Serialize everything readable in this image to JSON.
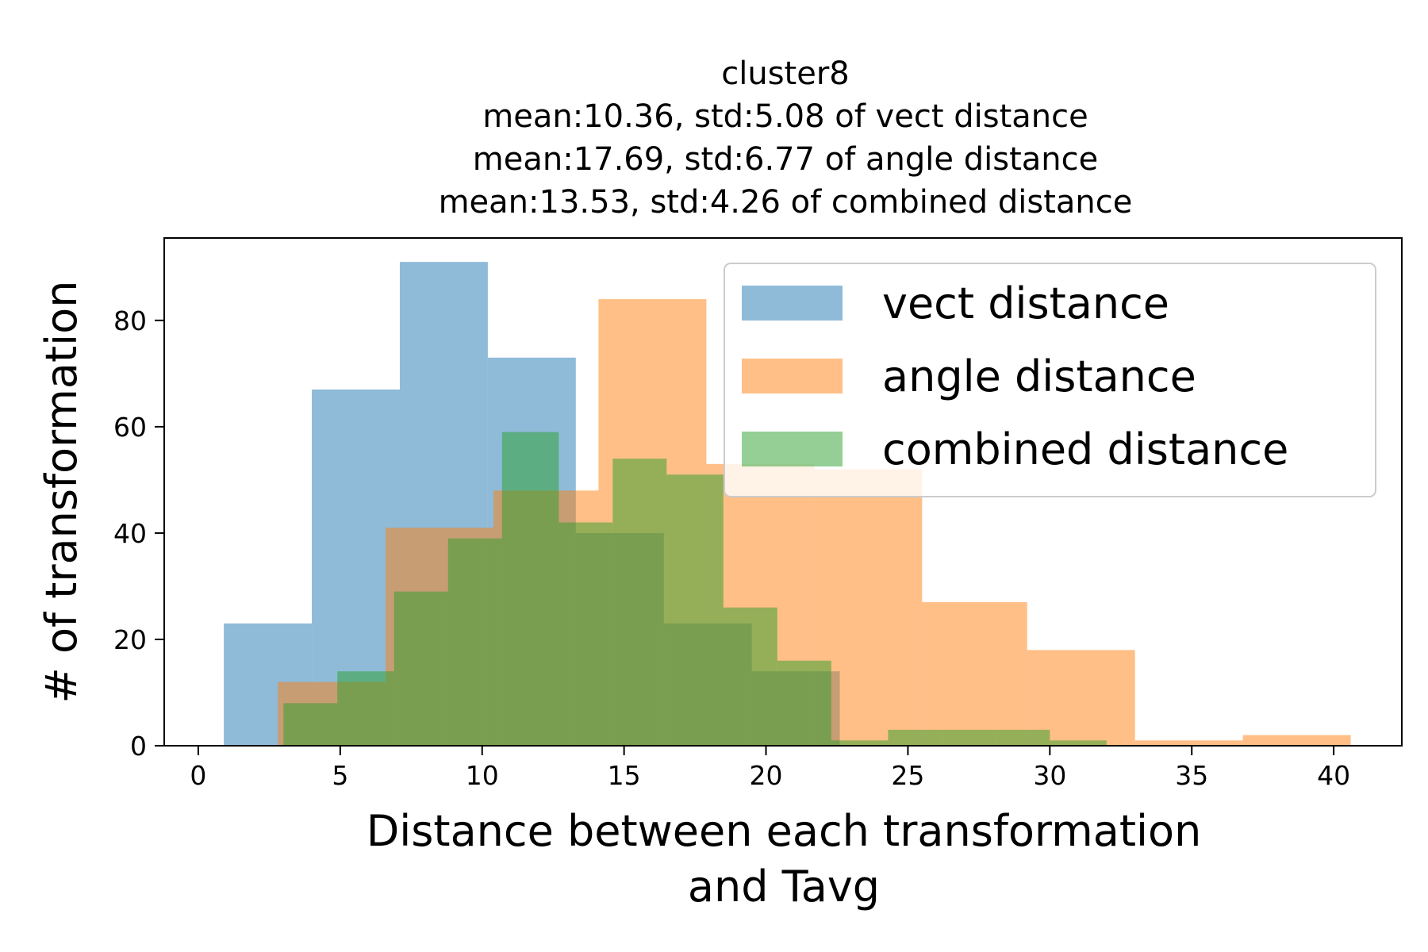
{
  "chart_data": {
    "type": "bar",
    "title_lines": [
      "cluster8",
      "mean:10.36, std:5.08 of vect distance",
      "mean:17.69, std:6.77 of angle distance",
      "mean:13.53, std:4.26 of combined distance"
    ],
    "xlabel_lines": [
      "Distance between each transformation",
      "and Tavg"
    ],
    "ylabel": "# of transformation",
    "xlim": [
      -1.2,
      42.4
    ],
    "ylim": [
      0,
      95.5
    ],
    "xticks": [
      0,
      5,
      10,
      15,
      20,
      25,
      30,
      35,
      40
    ],
    "yticks": [
      0,
      20,
      40,
      60,
      80
    ],
    "grid": false,
    "legend_position": "top-right",
    "series": [
      {
        "name": "vect distance",
        "color": "#1f77b4",
        "alpha": 0.5,
        "bin_edges": [
          0.9,
          4.0,
          7.1,
          10.2,
          13.3,
          16.4,
          19.5,
          22.6
        ],
        "values": [
          23,
          67,
          91,
          73,
          40,
          23,
          14
        ]
      },
      {
        "name": "angle distance",
        "color": "#ff7f0e",
        "alpha": 0.5,
        "bin_edges": [
          2.8,
          6.6,
          10.4,
          14.1,
          17.9,
          21.7,
          25.5,
          29.2,
          33.0,
          36.8,
          40.6
        ],
        "values": [
          12,
          41,
          48,
          84,
          53,
          52,
          27,
          18,
          1,
          2
        ]
      },
      {
        "name": "combined distance",
        "color": "#2ca02c",
        "alpha": 0.5,
        "bin_edges": [
          3.0,
          4.9,
          6.9,
          8.8,
          10.7,
          12.7,
          14.6,
          16.5,
          18.5,
          20.4,
          22.3,
          24.3,
          26.2,
          28.1,
          30.0,
          32.0
        ],
        "values": [
          8,
          14,
          29,
          39,
          59,
          42,
          54,
          51,
          26,
          16,
          1,
          3,
          3,
          3,
          1
        ]
      }
    ]
  }
}
